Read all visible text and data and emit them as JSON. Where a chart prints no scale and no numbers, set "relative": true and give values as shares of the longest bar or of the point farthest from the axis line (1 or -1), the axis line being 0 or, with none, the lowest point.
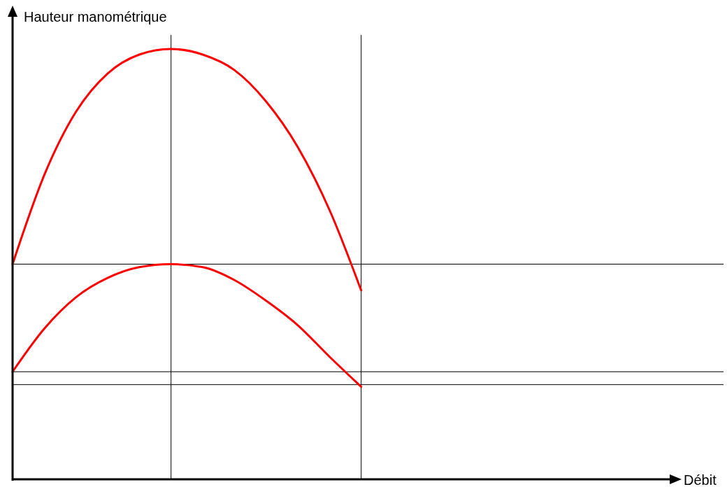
{
  "chart_data": {
    "type": "line",
    "xlabel": "Débit",
    "ylabel": "Hauteur manométrique",
    "relative": true,
    "marker": "none",
    "line_style": "solid",
    "categories": [
      null,
      null,
      null,
      null,
      null,
      null,
      null,
      null,
      null,
      null,
      null,
      null,
      null,
      null,
      null,
      null,
      null,
      null,
      null,
      null,
      null,
      null
    ],
    "series": [
      {
        "color": "#ff0000",
        "values": [
          0.5,
          0.707,
          0.854,
          0.943,
          0.987,
          1.0,
          0.987,
          0.951,
          0.878,
          0.772,
          0.626,
          0.439,
          null,
          null,
          null,
          null,
          null,
          null,
          null,
          null,
          null,
          null
        ]
      },
      {
        "color": "#ff0000",
        "values": [
          0.25,
          0.35,
          0.423,
          0.468,
          0.493,
          0.5,
          0.493,
          0.463,
          0.415,
          0.358,
          0.285,
          0.215,
          null,
          null,
          null,
          null,
          null,
          null,
          null,
          null,
          null,
          null
        ]
      }
    ],
    "ref_lines": [
      {
        "axis": "y",
        "value": 0.5,
        "color": "#000000"
      },
      {
        "axis": "y",
        "value": 0.25,
        "color": "#000000"
      },
      {
        "axis": "y",
        "value": 0.22,
        "color": "#000000"
      }
    ]
  }
}
